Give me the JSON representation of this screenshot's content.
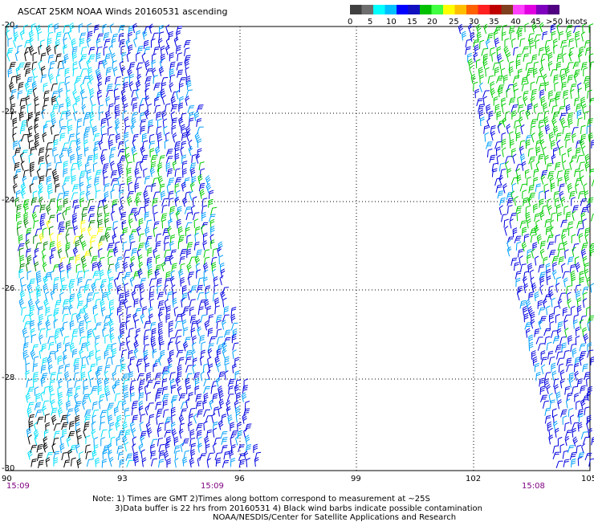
{
  "title": "ASCAT 25KM NOAA Winds 20160531 ascending",
  "legend": {
    "colors": [
      "#404040",
      "#6e6e6e",
      "#00ffff",
      "#00bfff",
      "#0000ff",
      "#1010c0",
      "#00c000",
      "#40ff40",
      "#ffff00",
      "#ffbf00",
      "#ff6000",
      "#ff2020",
      "#c00000",
      "#804020",
      "#ff40ff",
      "#e000e0",
      "#8000c0",
      "#500080"
    ],
    "labels": [
      "0",
      "5",
      "10",
      "15",
      "20",
      "25",
      "30",
      "35",
      "40",
      "45",
      ">50 knots"
    ]
  },
  "axes": {
    "lat_labels": [
      "-20",
      "-22",
      "-24",
      "-26",
      "-28",
      "-30"
    ],
    "lon_labels": [
      "90",
      "93",
      "96",
      "99",
      "102",
      "105"
    ]
  },
  "times": [
    "15:09",
    "15:09",
    "15:08"
  ],
  "notes": [
    "Note: 1) Times are GMT 2)Times along bottom correspond to measurement at ~25S",
    "3)Data buffer is 22 hrs from 20160531 4) Black wind barbs indicate possible contamination",
    "NOAA/NESDIS/Center for Satellite Applications and Research"
  ],
  "wind_speed_colors": {
    "low_black": "#000000",
    "cyan": "#00e0ff",
    "blue_light": "#00a0ff",
    "blue": "#0000e0",
    "green": "#00cc00",
    "green_dark": "#008000",
    "yellow": "#ffff00"
  }
}
